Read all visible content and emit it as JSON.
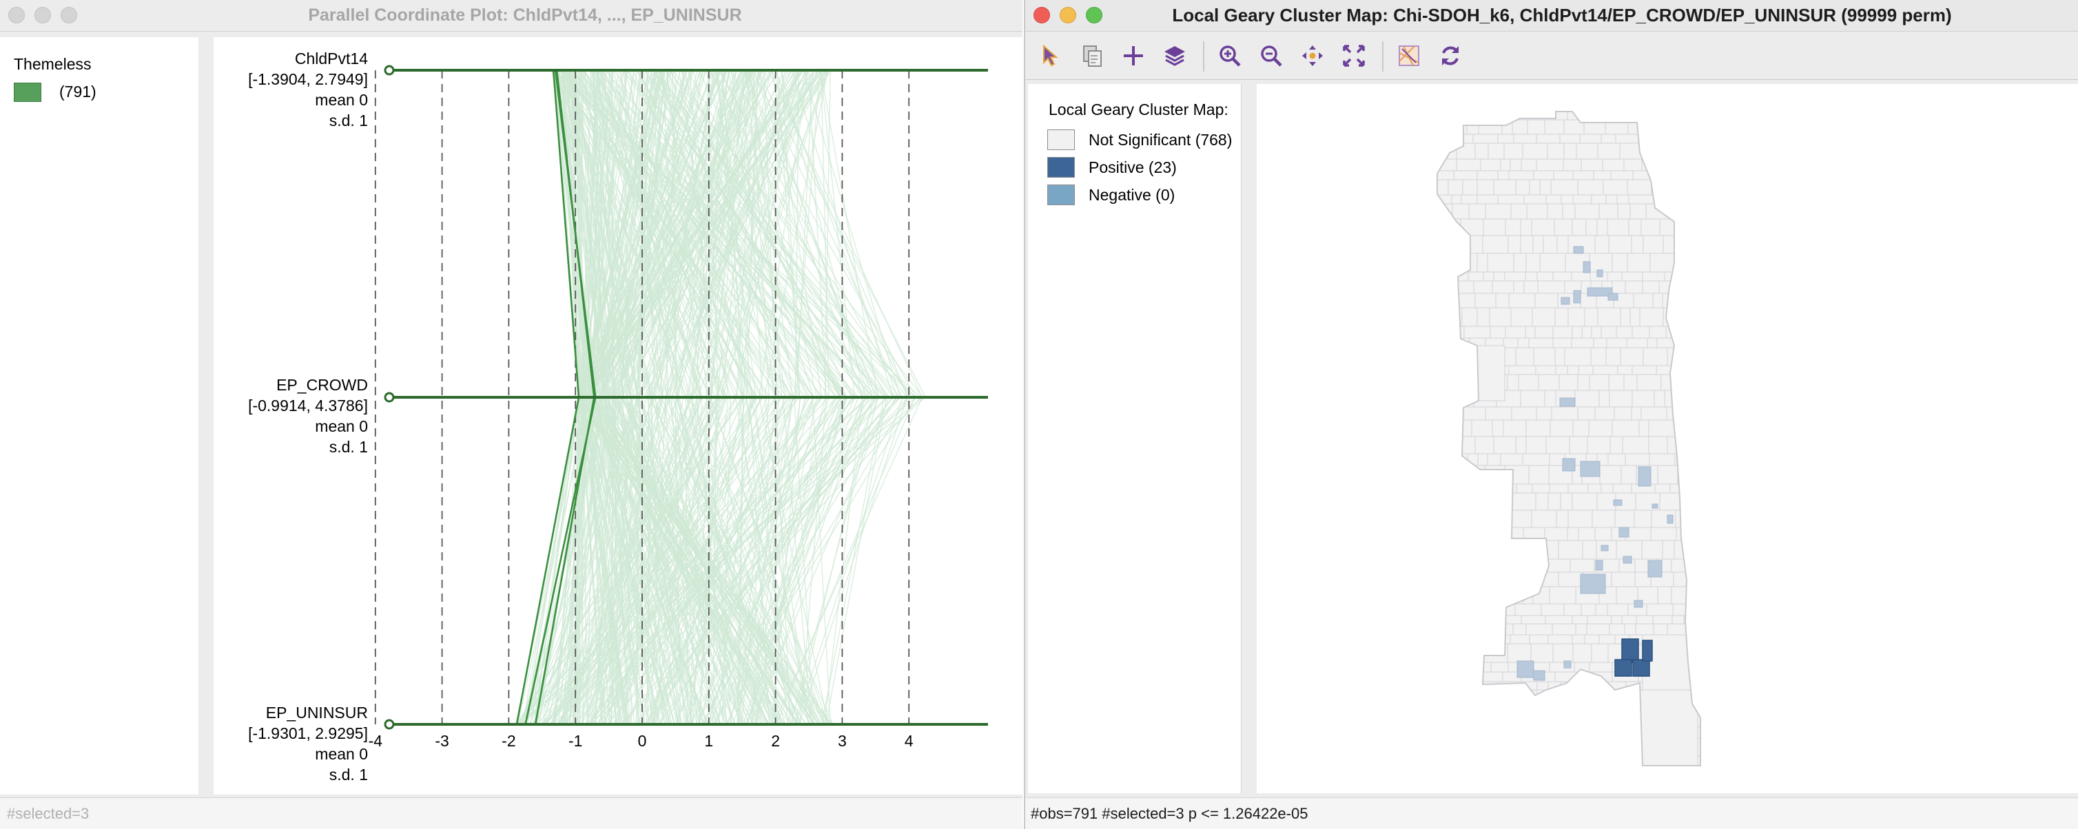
{
  "pcp_window": {
    "title": "Parallel Coordinate Plot: ChldPvt14, ..., EP_UNINSUR",
    "legend": {
      "title": "Themeless",
      "count": "(791)",
      "color": "#57a05b"
    },
    "variables": [
      {
        "name": "ChldPvt14",
        "range": "[-1.3904, 2.7949]",
        "mean": "mean  0",
        "sd": "s.d.  1"
      },
      {
        "name": "EP_CROWD",
        "range": "[-0.9914, 4.3786]",
        "mean": "mean  0",
        "sd": "s.d.  1"
      },
      {
        "name": "EP_UNINSUR",
        "range": "[-1.9301, 2.9295]",
        "mean": "mean  0",
        "sd": "s.d.  1"
      }
    ],
    "axis_ticks": [
      "-4",
      "-3",
      "-2",
      "-1",
      "0",
      "1",
      "2",
      "3",
      "4"
    ],
    "status": "#selected=3",
    "colors": {
      "axis": "#2d6a2d",
      "background_lines": "#cfe8d4",
      "selected_lines": "#3a8f3e"
    }
  },
  "lg_window": {
    "title": "Local Geary Cluster Map: Chi-SDOH_k6, ChldPvt14/EP_CROWD/EP_UNINSUR (99999 perm)",
    "toolbar": {
      "tools": [
        {
          "name": "select-tool",
          "icon": "pointer-icon"
        },
        {
          "name": "copy-tool",
          "icon": "copy-icon"
        },
        {
          "name": "add-tool",
          "icon": "plus-icon"
        },
        {
          "name": "layers-tool",
          "icon": "layers-icon"
        },
        {
          "name": "zoom-in-tool",
          "icon": "zoom-in-icon"
        },
        {
          "name": "zoom-out-tool",
          "icon": "zoom-out-icon"
        },
        {
          "name": "pan-tool",
          "icon": "pan-icon"
        },
        {
          "name": "fit-tool",
          "icon": "fit-extent-icon"
        },
        {
          "name": "basemap-tool",
          "icon": "basemap-icon"
        },
        {
          "name": "refresh-tool",
          "icon": "refresh-icon"
        }
      ]
    },
    "legend": {
      "title": "Local Geary Cluster Map:",
      "items": [
        {
          "label": "Not Significant (768)",
          "color": "#f1f1f1"
        },
        {
          "label": "Positive (23)",
          "color": "#3d6697"
        },
        {
          "label": "Negative (0)",
          "color": "#7aa6c6"
        }
      ]
    },
    "map_colors": {
      "tract_fill": "#f2f2f3",
      "tract_stroke": "#d2d2d6",
      "positive": "#3d6697",
      "light": "#b9c9dc"
    },
    "status": "#obs=791 #selected=3   p <= 1.26422e-05"
  }
}
